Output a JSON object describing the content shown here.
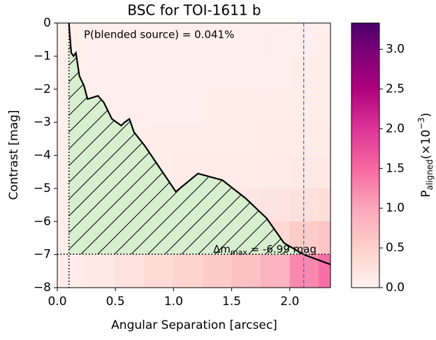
{
  "chart_data": {
    "type": "contrast-heatmap",
    "title": "BSC for TOI-1611 b",
    "x_label": "Angular Separation [arcsec]",
    "y_label": "Contrast [mag]",
    "xlim": [
      0,
      2.35
    ],
    "ylim": [
      -8,
      0
    ],
    "xticks": [
      {
        "value": 0,
        "label": "0.0"
      },
      {
        "value": 0.5,
        "label": "0.5"
      },
      {
        "value": 1,
        "label": "1.0"
      },
      {
        "value": 1.5,
        "label": "1.5"
      },
      {
        "value": 2,
        "label": "2.0"
      }
    ],
    "yticks": [
      {
        "value": -8,
        "label": "−8"
      },
      {
        "value": -7,
        "label": "−7"
      },
      {
        "value": -6,
        "label": "−6"
      },
      {
        "value": -5,
        "label": "−5"
      },
      {
        "value": -4,
        "label": "−4"
      },
      {
        "value": -3,
        "label": "−3"
      },
      {
        "value": -2,
        "label": "−2"
      },
      {
        "value": -1,
        "label": "−1"
      },
      0
    ],
    "heatmap": {
      "x_edges": [
        0,
        0.25,
        0.5,
        0.75,
        1.0,
        1.25,
        1.5,
        1.75,
        2.0,
        2.25,
        2.35
      ],
      "y_edges": [
        0,
        -1,
        -2,
        -3,
        -4,
        -5,
        -6,
        -7,
        -8
      ],
      "values": [
        [
          0.05,
          0.06,
          0.06,
          0.06,
          0.06,
          0.06,
          0.06,
          0.07,
          0.07,
          0.07
        ],
        [
          0.05,
          0.06,
          0.06,
          0.06,
          0.07,
          0.07,
          0.07,
          0.07,
          0.08,
          0.08
        ],
        [
          0.05,
          0.06,
          0.07,
          0.07,
          0.07,
          0.08,
          0.08,
          0.08,
          0.09,
          0.09
        ],
        [
          0.06,
          0.07,
          0.07,
          0.08,
          0.08,
          0.09,
          0.09,
          0.1,
          0.1,
          0.11
        ],
        [
          0.06,
          0.07,
          0.08,
          0.09,
          0.1,
          0.11,
          0.12,
          0.13,
          0.14,
          0.15
        ],
        [
          0.07,
          0.08,
          0.1,
          0.12,
          0.14,
          0.16,
          0.18,
          0.22,
          0.26,
          0.3
        ],
        [
          0.08,
          0.1,
          0.13,
          0.16,
          0.2,
          0.24,
          0.3,
          0.38,
          0.55,
          0.65
        ],
        [
          0.1,
          0.15,
          0.25,
          0.35,
          0.45,
          0.55,
          0.7,
          0.85,
          1.25,
          1.45
        ]
      ]
    },
    "colormap": [
      {
        "value": 0,
        "color": "#fff3f0"
      },
      {
        "value": 0.5,
        "color": "#fdd0cb"
      },
      {
        "value": 1.0,
        "color": "#fba7bb"
      },
      {
        "value": 1.5,
        "color": "#f768a1"
      },
      {
        "value": 2.0,
        "color": "#dd3497"
      },
      {
        "value": 2.5,
        "color": "#ae017e"
      },
      {
        "value": 3.0,
        "color": "#7a0177"
      },
      {
        "value": 3.33,
        "color": "#49006a"
      }
    ],
    "colorbar_lim": [
      0,
      3.33
    ],
    "colorbar_ticks": [
      {
        "value": 0,
        "label": "0.0"
      },
      {
        "value": 0.5,
        "label": "0.5"
      },
      {
        "value": 1,
        "label": "1.0"
      },
      {
        "value": 1.5,
        "label": "1.5"
      },
      {
        "value": 2,
        "label": "2.0"
      },
      {
        "value": 2.5,
        "label": "2.5"
      },
      {
        "value": 3,
        "label": "3.0"
      }
    ],
    "colorbar_label": {
      "symbol": "P",
      "subscript": "aligned",
      "unit": "(×10",
      "exponent": "−3",
      "close": ")"
    },
    "contrast_curve": {
      "color": "#000000",
      "x": [
        0.1,
        0.12,
        0.14,
        0.16,
        0.19,
        0.23,
        0.26,
        0.35,
        0.4,
        0.47,
        0.55,
        0.58,
        0.62,
        0.66,
        0.75,
        1.02,
        1.21,
        1.42,
        1.62,
        1.8,
        1.95,
        2.12,
        2.35
      ],
      "y": [
        0,
        -0.9,
        -1.0,
        -0.9,
        -1.6,
        -1.9,
        -2.3,
        -2.2,
        -2.4,
        -2.9,
        -3.1,
        -3.0,
        -2.9,
        -3.3,
        -3.7,
        -5.1,
        -4.55,
        -4.75,
        -5.3,
        -5.9,
        -6.65,
        -7.0,
        -7.3
      ]
    },
    "fill_color": "#d8efcf",
    "inner_limit": 0.1,
    "delta_mag": -6.99,
    "separation_limit": 2.12,
    "separation_color": "#2f6bb5",
    "annotation": "P(blended source) = 0.041%",
    "delta_label": {
      "symbol": "Δm",
      "subscript": "max",
      "text": " =  -6.99 mag"
    }
  }
}
